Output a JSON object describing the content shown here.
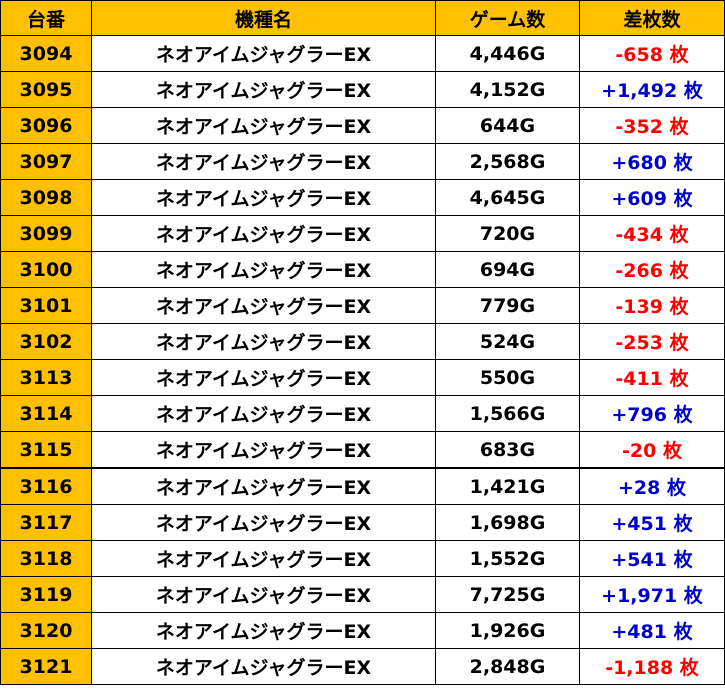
{
  "header": {
    "number": "台番",
    "model": "機種名",
    "games": "ゲーム数",
    "diff": "差枚数"
  },
  "colors": {
    "header_bg": "#FFC000",
    "minus": "#FF0000",
    "plus": "#0000CC"
  },
  "rows": [
    {
      "number": "3094",
      "model": "ネオアイムジャグラーEX",
      "games": "4,446G",
      "diff": "-658 枚",
      "sign": "minus"
    },
    {
      "number": "3095",
      "model": "ネオアイムジャグラーEX",
      "games": "4,152G",
      "diff": "+1,492 枚",
      "sign": "plus"
    },
    {
      "number": "3096",
      "model": "ネオアイムジャグラーEX",
      "games": "644G",
      "diff": "-352 枚",
      "sign": "minus"
    },
    {
      "number": "3097",
      "model": "ネオアイムジャグラーEX",
      "games": "2,568G",
      "diff": "+680 枚",
      "sign": "plus"
    },
    {
      "number": "3098",
      "model": "ネオアイムジャグラーEX",
      "games": "4,645G",
      "diff": "+609 枚",
      "sign": "plus"
    },
    {
      "number": "3099",
      "model": "ネオアイムジャグラーEX",
      "games": "720G",
      "diff": "-434 枚",
      "sign": "minus"
    },
    {
      "number": "3100",
      "model": "ネオアイムジャグラーEX",
      "games": "694G",
      "diff": "-266 枚",
      "sign": "minus"
    },
    {
      "number": "3101",
      "model": "ネオアイムジャグラーEX",
      "games": "779G",
      "diff": "-139 枚",
      "sign": "minus"
    },
    {
      "number": "3102",
      "model": "ネオアイムジャグラーEX",
      "games": "524G",
      "diff": "-253 枚",
      "sign": "minus"
    },
    {
      "number": "3113",
      "model": "ネオアイムジャグラーEX",
      "games": "550G",
      "diff": "-411 枚",
      "sign": "minus"
    },
    {
      "number": "3114",
      "model": "ネオアイムジャグラーEX",
      "games": "1,566G",
      "diff": "+796 枚",
      "sign": "plus"
    },
    {
      "number": "3115",
      "model": "ネオアイムジャグラーEX",
      "games": "683G",
      "diff": "-20 枚",
      "sign": "minus"
    },
    {
      "number": "3116",
      "model": "ネオアイムジャグラーEX",
      "games": "1,421G",
      "diff": "+28 枚",
      "sign": "plus"
    },
    {
      "number": "3117",
      "model": "ネオアイムジャグラーEX",
      "games": "1,698G",
      "diff": "+451 枚",
      "sign": "plus"
    },
    {
      "number": "3118",
      "model": "ネオアイムジャグラーEX",
      "games": "1,552G",
      "diff": "+541 枚",
      "sign": "plus"
    },
    {
      "number": "3119",
      "model": "ネオアイムジャグラーEX",
      "games": "7,725G",
      "diff": "+1,971 枚",
      "sign": "plus"
    },
    {
      "number": "3120",
      "model": "ネオアイムジャグラーEX",
      "games": "1,926G",
      "diff": "+481 枚",
      "sign": "plus"
    },
    {
      "number": "3121",
      "model": "ネオアイムジャグラーEX",
      "games": "2,848G",
      "diff": "-1,188 枚",
      "sign": "minus"
    }
  ]
}
